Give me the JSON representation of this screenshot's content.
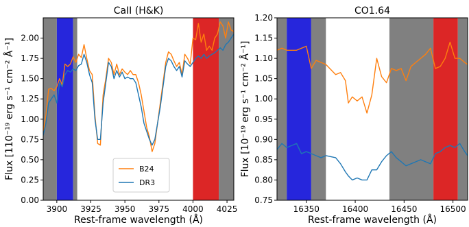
{
  "chart_data": [
    {
      "type": "line",
      "title": "CaII (H&K)",
      "xlabel": "Rest-frame wavelength (Å)",
      "ylabel": "Flux [110⁻¹⁹ erg s⁻¹ cm⁻² Å⁻¹]",
      "xlim": [
        3890,
        4030
      ],
      "ylim": [
        0.0,
        2.25
      ],
      "xticks": [
        3900,
        3925,
        3950,
        3975,
        4000,
        4025
      ],
      "xtick_labels": [
        "3900",
        "3925",
        "3950",
        "3975",
        "4000",
        "4025"
      ],
      "yticks": [
        0.0,
        0.25,
        0.5,
        0.75,
        1.0,
        1.25,
        1.5,
        1.75,
        2.0
      ],
      "ytick_labels": [
        "0.00",
        "0.25",
        "0.50",
        "0.75",
        "1.00",
        "1.25",
        "1.50",
        "1.75",
        "2.00"
      ],
      "grid": false,
      "legend_position": "lower-center",
      "bands": [
        {
          "x0": 3890,
          "x1": 3900,
          "color": "#808080"
        },
        {
          "x0": 3900,
          "x1": 3912,
          "color": "#2626dc"
        },
        {
          "x0": 3912,
          "x1": 3915,
          "color": "#808080"
        },
        {
          "x0": 4000,
          "x1": 4019,
          "color": "#dc2626"
        },
        {
          "x0": 4019,
          "x1": 4030,
          "color": "#808080"
        }
      ],
      "series": [
        {
          "name": "B24",
          "color": "#ff7f0e",
          "x": [
            3890,
            3892,
            3894,
            3896,
            3898,
            3900,
            3902,
            3904,
            3906,
            3908,
            3910,
            3912,
            3914,
            3916,
            3918,
            3920,
            3922,
            3924,
            3926,
            3928,
            3930,
            3932,
            3934,
            3936,
            3938,
            3940,
            3942,
            3944,
            3946,
            3948,
            3950,
            3952,
            3954,
            3956,
            3958,
            3960,
            3962,
            3964,
            3966,
            3968,
            3970,
            3972,
            3974,
            3976,
            3978,
            3980,
            3982,
            3984,
            3986,
            3988,
            3990,
            3992,
            3994,
            3996,
            3998,
            4000,
            4002,
            4004,
            4006,
            4008,
            4010,
            4012,
            4014,
            4016,
            4018,
            4020,
            4022,
            4024,
            4026,
            4028,
            4030
          ],
          "y": [
            0.85,
            1.05,
            1.37,
            1.38,
            1.35,
            1.4,
            1.5,
            1.42,
            1.68,
            1.65,
            1.68,
            1.77,
            1.7,
            1.8,
            1.76,
            1.92,
            1.75,
            1.6,
            1.55,
            1.05,
            0.7,
            0.68,
            1.3,
            1.5,
            1.75,
            1.7,
            1.55,
            1.68,
            1.55,
            1.62,
            1.58,
            1.55,
            1.6,
            1.55,
            1.55,
            1.45,
            1.3,
            1.1,
            0.9,
            0.78,
            0.6,
            0.7,
            0.95,
            1.2,
            1.45,
            1.7,
            1.83,
            1.8,
            1.72,
            1.65,
            1.7,
            1.55,
            1.8,
            1.75,
            1.68,
            2.0,
            1.98,
            2.18,
            1.95,
            2.05,
            1.85,
            1.9,
            1.85,
            2.0,
            2.05,
            2.2,
            2.15,
            2.0,
            2.2,
            2.1,
            2.08
          ]
        },
        {
          "name": "DR3",
          "color": "#1f77b4",
          "x": [
            3890,
            3892,
            3894,
            3896,
            3898,
            3900,
            3902,
            3904,
            3906,
            3908,
            3910,
            3912,
            3914,
            3916,
            3918,
            3920,
            3922,
            3924,
            3926,
            3928,
            3930,
            3932,
            3934,
            3936,
            3938,
            3940,
            3942,
            3944,
            3946,
            3948,
            3950,
            3952,
            3954,
            3956,
            3958,
            3960,
            3962,
            3964,
            3966,
            3968,
            3970,
            3972,
            3974,
            3976,
            3978,
            3980,
            3982,
            3984,
            3986,
            3988,
            3990,
            3992,
            3994,
            3996,
            3998,
            4000,
            4002,
            4004,
            4006,
            4008,
            4010,
            4012,
            4014,
            4016,
            4018,
            4020,
            4022,
            4024,
            4026,
            4028,
            4030
          ],
          "y": [
            0.8,
            0.95,
            1.2,
            1.25,
            1.3,
            1.2,
            1.45,
            1.4,
            1.55,
            1.6,
            1.58,
            1.62,
            1.6,
            1.66,
            1.68,
            1.8,
            1.7,
            1.55,
            1.45,
            1.0,
            0.75,
            0.75,
            1.2,
            1.45,
            1.7,
            1.65,
            1.5,
            1.6,
            1.52,
            1.58,
            1.5,
            1.52,
            1.5,
            1.5,
            1.45,
            1.3,
            1.15,
            0.95,
            0.85,
            0.75,
            0.68,
            0.75,
            0.95,
            1.15,
            1.4,
            1.65,
            1.75,
            1.72,
            1.65,
            1.6,
            1.65,
            1.52,
            1.72,
            1.68,
            1.65,
            1.7,
            1.75,
            1.78,
            1.75,
            1.8,
            1.75,
            1.78,
            1.8,
            1.82,
            1.85,
            1.88,
            1.85,
            1.92,
            1.95,
            2.0,
            2.05
          ]
        }
      ]
    },
    {
      "type": "line",
      "title": "CO1.64",
      "xlabel": "Rest-frame wavelength (Å)",
      "ylabel": "Flux [10⁻¹⁹ erg s⁻¹ cm⁻² Å⁻¹]",
      "xlim": [
        16320,
        16515
      ],
      "ylim": [
        0.75,
        1.2
      ],
      "xticks": [
        16350,
        16400,
        16450,
        16500
      ],
      "xtick_labels": [
        "16350",
        "16400",
        "16450",
        "16500"
      ],
      "yticks": [
        0.75,
        0.8,
        0.85,
        0.9,
        0.95,
        1.0,
        1.05,
        1.1,
        1.15,
        1.2
      ],
      "ytick_labels": [
        "0.75",
        "0.80",
        "0.85",
        "0.90",
        "0.95",
        "1.00",
        "1.05",
        "1.10",
        "1.15",
        "1.20"
      ],
      "grid": false,
      "bands": [
        {
          "x0": 16320,
          "x1": 16330,
          "color": "#808080"
        },
        {
          "x0": 16330,
          "x1": 16355,
          "color": "#2626dc"
        },
        {
          "x0": 16355,
          "x1": 16370,
          "color": "#808080"
        },
        {
          "x0": 16435,
          "x1": 16480,
          "color": "#808080"
        },
        {
          "x0": 16480,
          "x1": 16505,
          "color": "#dc2626"
        },
        {
          "x0": 16505,
          "x1": 16515,
          "color": "#808080"
        }
      ],
      "series": [
        {
          "name": "B24",
          "color": "#ff7f0e",
          "x": [
            16320,
            16325,
            16330,
            16340,
            16345,
            16350,
            16355,
            16360,
            16365,
            16370,
            16380,
            16385,
            16390,
            16393,
            16397,
            16402,
            16407,
            16412,
            16417,
            16422,
            16427,
            16432,
            16437,
            16442,
            16447,
            16452,
            16457,
            16462,
            16467,
            16472,
            16477,
            16482,
            16487,
            16492,
            16497,
            16502,
            16507,
            16512,
            16515
          ],
          "y": [
            1.12,
            1.125,
            1.12,
            1.12,
            1.125,
            1.13,
            1.075,
            1.095,
            1.09,
            1.085,
            1.06,
            1.065,
            1.045,
            0.99,
            1.005,
            0.995,
            1.005,
            0.965,
            1.01,
            1.1,
            1.055,
            1.04,
            1.075,
            1.07,
            1.075,
            1.045,
            1.08,
            1.09,
            1.1,
            1.11,
            1.125,
            1.075,
            1.08,
            1.1,
            1.14,
            1.1,
            1.1,
            1.09,
            1.085
          ]
        },
        {
          "name": "DR3",
          "color": "#1f77b4",
          "x": [
            16320,
            16325,
            16330,
            16340,
            16345,
            16350,
            16355,
            16360,
            16365,
            16370,
            16380,
            16385,
            16390,
            16393,
            16397,
            16402,
            16407,
            16412,
            16417,
            16422,
            16427,
            16432,
            16437,
            16442,
            16447,
            16452,
            16457,
            16462,
            16467,
            16472,
            16477,
            16482,
            16487,
            16492,
            16497,
            16502,
            16507,
            16512,
            16515
          ],
          "y": [
            0.875,
            0.89,
            0.88,
            0.89,
            0.865,
            0.87,
            0.865,
            0.86,
            0.855,
            0.86,
            0.855,
            0.84,
            0.82,
            0.81,
            0.8,
            0.805,
            0.8,
            0.8,
            0.825,
            0.825,
            0.845,
            0.86,
            0.87,
            0.855,
            0.845,
            0.835,
            0.84,
            0.845,
            0.85,
            0.845,
            0.84,
            0.865,
            0.87,
            0.88,
            0.885,
            0.88,
            0.89,
            0.87,
            0.86
          ]
        }
      ]
    }
  ]
}
